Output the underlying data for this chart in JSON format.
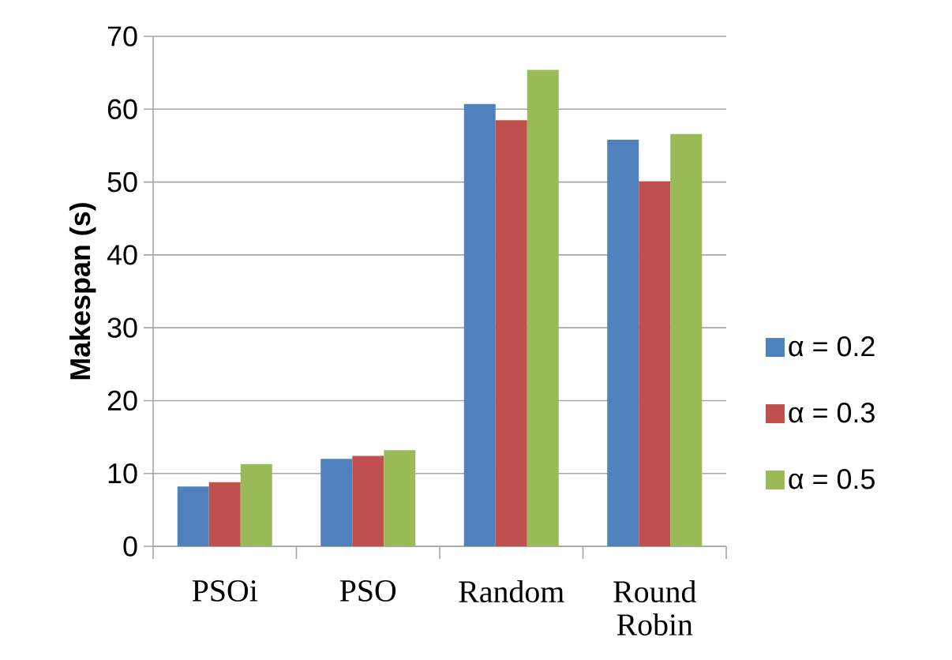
{
  "chart_data": {
    "type": "bar",
    "ylabel": "Makespan (s)",
    "categories": [
      "PSOi",
      "PSO",
      "Random",
      "Round Robin"
    ],
    "series": [
      {
        "name": "α = 0.2",
        "color": "#4f81bd",
        "values": [
          8.2,
          12.0,
          60.7,
          55.8
        ]
      },
      {
        "name": "α = 0.3",
        "color": "#c0504d",
        "values": [
          8.8,
          12.4,
          58.5,
          50.1
        ]
      },
      {
        "name": "α = 0.5",
        "color": "#9bbb59",
        "values": [
          11.3,
          13.2,
          65.4,
          56.6
        ]
      }
    ],
    "ylim": [
      0,
      70
    ],
    "yticks": [
      0,
      10,
      20,
      30,
      40,
      50,
      60,
      70
    ],
    "grid": "y",
    "legend": "right"
  }
}
